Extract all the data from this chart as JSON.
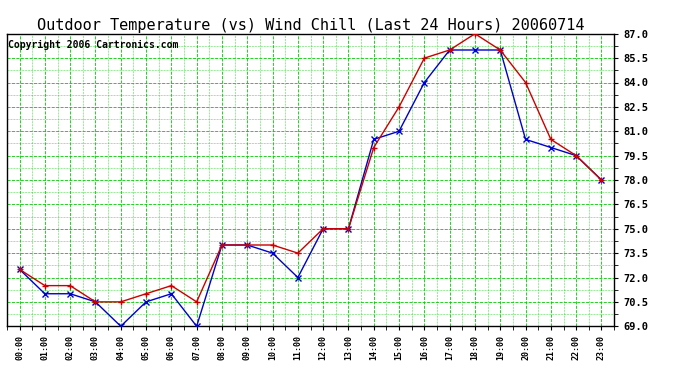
{
  "title": "Outdoor Temperature (vs) Wind Chill (Last 24 Hours) 20060714",
  "copyright": "Copyright 2006 Cartronics.com",
  "hours": [
    "00:00",
    "01:00",
    "02:00",
    "03:00",
    "04:00",
    "05:00",
    "06:00",
    "07:00",
    "08:00",
    "09:00",
    "10:00",
    "11:00",
    "12:00",
    "13:00",
    "14:00",
    "15:00",
    "16:00",
    "17:00",
    "18:00",
    "19:00",
    "20:00",
    "21:00",
    "22:00",
    "23:00"
  ],
  "outdoor_temp": [
    72.5,
    71.5,
    71.5,
    70.5,
    70.5,
    71.0,
    71.5,
    70.5,
    74.0,
    74.0,
    74.0,
    73.5,
    75.0,
    75.0,
    80.0,
    82.5,
    85.5,
    86.0,
    87.0,
    86.0,
    84.0,
    80.5,
    79.5,
    78.0
  ],
  "wind_chill": [
    72.5,
    71.0,
    71.0,
    70.5,
    69.0,
    70.5,
    71.0,
    69.0,
    74.0,
    74.0,
    73.5,
    72.0,
    75.0,
    75.0,
    80.5,
    81.0,
    84.0,
    86.0,
    86.0,
    86.0,
    80.5,
    80.0,
    79.5,
    78.0
  ],
  "temp_color": "#cc0000",
  "wind_color": "#0000cc",
  "ylim_min": 69.0,
  "ylim_max": 87.0,
  "ytick_step": 1.5,
  "background_color": "#ffffff",
  "plot_bg_color": "#ffffff",
  "grid_color": "#00cc00",
  "title_fontsize": 11,
  "copyright_fontsize": 7
}
